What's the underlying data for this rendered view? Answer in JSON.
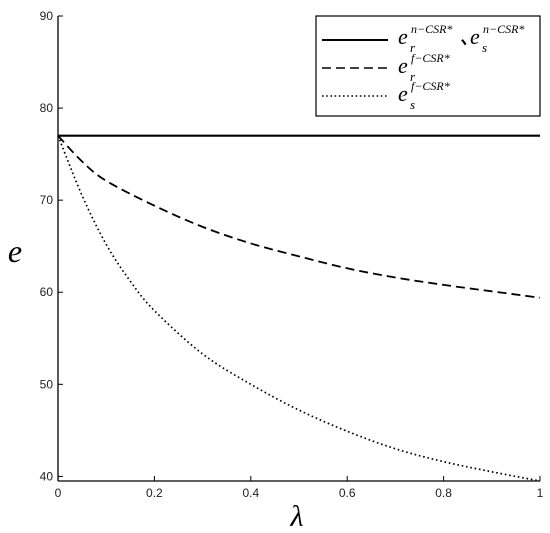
{
  "chart_data": {
    "type": "line",
    "title": "",
    "xlabel": "λ",
    "ylabel": "e",
    "xlim": [
      0,
      1
    ],
    "ylim": [
      39.5,
      90
    ],
    "x_ticks": [
      "0",
      "0.2",
      "0.4",
      "0.6",
      "0.8",
      "1"
    ],
    "y_ticks": [
      "40",
      "50",
      "60",
      "70",
      "80",
      "90"
    ],
    "x_tick_values": [
      0,
      0.2,
      0.4,
      0.6,
      0.8,
      1
    ],
    "y_tick_values": [
      40,
      50,
      60,
      70,
      80,
      90
    ],
    "grid": false,
    "legend_position": "top-right",
    "series": [
      {
        "name": "e_r^{n-CSR*}, e_s^{n-CSR*}",
        "style": "solid",
        "x": [
          0,
          0.1,
          0.2,
          0.3,
          0.4,
          0.5,
          0.6,
          0.7,
          0.8,
          0.9,
          1
        ],
        "y": [
          77,
          77,
          77,
          77,
          77,
          77,
          77,
          77,
          77,
          77,
          77
        ]
      },
      {
        "name": "e_r^{f-CSR*}",
        "style": "dashed",
        "x": [
          0,
          0.05,
          0.1,
          0.2,
          0.3,
          0.4,
          0.5,
          0.6,
          0.7,
          0.8,
          0.9,
          1
        ],
        "y": [
          77,
          74.2,
          72.1,
          69.4,
          67.1,
          65.3,
          63.9,
          62.6,
          61.6,
          60.8,
          60.1,
          59.4
        ]
      },
      {
        "name": "e_s^{f-CSR*}",
        "style": "dotted",
        "x": [
          0,
          0.05,
          0.1,
          0.15,
          0.2,
          0.3,
          0.4,
          0.5,
          0.6,
          0.7,
          0.8,
          0.9,
          1
        ],
        "y": [
          77,
          70.5,
          65.2,
          61.2,
          58.0,
          53.3,
          50.0,
          47.2,
          44.9,
          43.0,
          41.6,
          40.5,
          39.5
        ]
      }
    ]
  },
  "legend": {
    "entries": [
      {
        "style": "solid",
        "base1": "e",
        "sup1": "n−CSR*",
        "sub1": "r",
        "sep": "、",
        "base2": "e",
        "sup2": "n−CSR*",
        "sub2": "s"
      },
      {
        "style": "dashed",
        "base1": "e",
        "sup1": "f−CSR*",
        "sub1": "r"
      },
      {
        "style": "dotted",
        "base1": "e",
        "sup1": "f−CSR*",
        "sub1": "s"
      }
    ]
  }
}
